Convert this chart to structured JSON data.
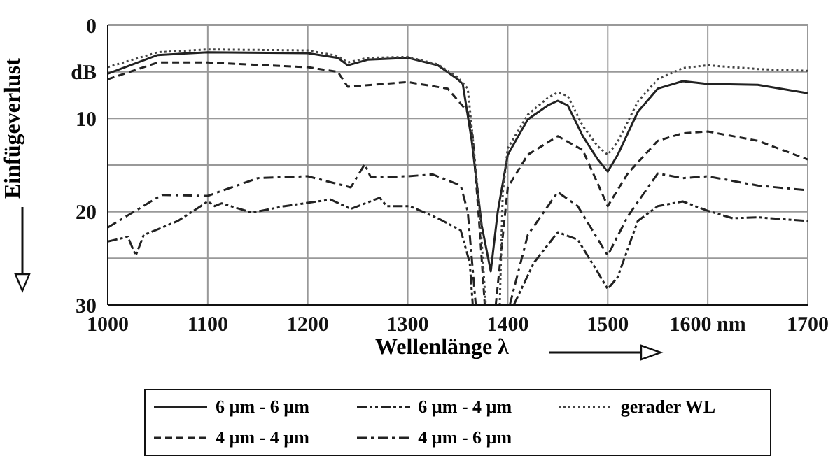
{
  "chart_data": {
    "type": "line",
    "xlabel": "Wellenlänge λ",
    "ylabel": "Einfügeverlust",
    "xlim": [
      1000,
      1700
    ],
    "xticks": [
      1000,
      1100,
      1200,
      1300,
      1400,
      1500,
      {
        "value": 1600,
        "label": "1600 nm"
      },
      1700
    ],
    "ylim": [
      30,
      0
    ],
    "yticks": [
      0,
      {
        "value": 5,
        "label": "dB"
      },
      10,
      {
        "value": 15,
        "label": null
      },
      20,
      {
        "value": 25,
        "label": null
      },
      30
    ],
    "grid": true,
    "legend": "bottom",
    "marker": "none",
    "series": [
      {
        "name": "6 µm - 6 µm",
        "color": "#222222",
        "line_style": "solid",
        "x": [
          1000,
          1050,
          1100,
          1200,
          1230,
          1240,
          1260,
          1300,
          1330,
          1350,
          1355,
          1364,
          1374,
          1383,
          1390,
          1400,
          1420,
          1440,
          1450,
          1460,
          1475,
          1490,
          1500,
          1510,
          1530,
          1550,
          1575,
          1600,
          1650,
          1700
        ],
        "values": [
          5.2,
          3.2,
          2.9,
          3.0,
          3.5,
          4.3,
          3.7,
          3.5,
          4.3,
          5.8,
          6.3,
          12.4,
          21.5,
          26.4,
          20,
          13.9,
          10.1,
          8.6,
          8.1,
          8.6,
          11.9,
          14.4,
          15.7,
          13.9,
          9.3,
          6.8,
          6.0,
          6.3,
          6.4,
          7.3
        ]
      },
      {
        "name": "4 µm - 4 µm",
        "color": "#222222",
        "line_style": "dashed",
        "x": [
          1000,
          1050,
          1100,
          1200,
          1230,
          1240,
          1300,
          1340,
          1360,
          1365,
          1372,
          1377,
          1382,
          1388,
          1400,
          1420,
          1450,
          1475,
          1500,
          1520,
          1550,
          1575,
          1600,
          1650,
          1700
        ],
        "values": [
          5.8,
          4.0,
          4.0,
          4.5,
          5.0,
          6.6,
          6.1,
          6.8,
          9.3,
          12,
          22,
          30,
          null,
          30,
          17.4,
          13.9,
          11.9,
          13.4,
          19.4,
          15.9,
          12.4,
          11.6,
          11.4,
          12.4,
          14.4
        ]
      },
      {
        "name": "6 µm - 4 µm",
        "color": "#222222",
        "line_style": "dashdotdot",
        "x": [
          1000,
          1020,
          1028,
          1036,
          1070,
          1093,
          1100,
          1107,
          1114,
          1144,
          1177,
          1223,
          1243,
          1272,
          1279,
          1302,
          1330,
          1353,
          1362,
          1365,
          1385,
          1406,
          1426,
          1450,
          1470,
          1490,
          1500,
          1510,
          1530,
          1550,
          1575,
          1600,
          1625,
          1650,
          1700
        ],
        "values": [
          23.2,
          22.7,
          24.7,
          22.5,
          21.0,
          19.4,
          18.9,
          19.4,
          19.1,
          20.1,
          19.4,
          18.7,
          19.7,
          18.5,
          19.4,
          19.4,
          20.7,
          22.0,
          25.5,
          30,
          null,
          30,
          25.5,
          22.2,
          23.0,
          26.5,
          28.3,
          27.0,
          21.0,
          19.4,
          18.9,
          19.9,
          20.7,
          20.6,
          21.0
        ]
      },
      {
        "name": "4 µm - 6 µm",
        "color": "#222222",
        "line_style": "dashdot",
        "x": [
          1000,
          1054,
          1100,
          1150,
          1200,
          1243,
          1257,
          1263,
          1300,
          1325,
          1353,
          1360,
          1368,
          1385,
          1402,
          1420,
          1450,
          1470,
          1500,
          1520,
          1550,
          1575,
          1600,
          1650,
          1700
        ],
        "values": [
          21.7,
          18.2,
          18.3,
          16.4,
          16.2,
          17.4,
          14.9,
          16.3,
          16.2,
          16.0,
          17.2,
          20,
          30,
          null,
          30,
          22.5,
          17.9,
          19.4,
          24.7,
          20.5,
          15.9,
          16.4,
          16.2,
          17.2,
          17.7
        ]
      },
      {
        "name": "gerader WL",
        "color": "#444444",
        "line_style": "dotted",
        "x": [
          1000,
          1050,
          1100,
          1200,
          1230,
          1240,
          1260,
          1300,
          1330,
          1350,
          1360,
          1364,
          1372,
          1378,
          1385,
          1392,
          1395,
          1400,
          1420,
          1440,
          1450,
          1460,
          1475,
          1490,
          1500,
          1510,
          1530,
          1550,
          1575,
          1600,
          1650,
          1700
        ],
        "values": [
          4.5,
          2.9,
          2.6,
          2.7,
          3.3,
          4.0,
          3.5,
          3.4,
          4.2,
          5.6,
          6.8,
          11,
          20,
          30,
          null,
          30,
          18,
          13.2,
          9.6,
          7.8,
          7.2,
          7.6,
          10.8,
          13,
          13.9,
          12.5,
          8.2,
          5.8,
          4.6,
          4.3,
          4.7,
          4.9
        ]
      }
    ]
  }
}
